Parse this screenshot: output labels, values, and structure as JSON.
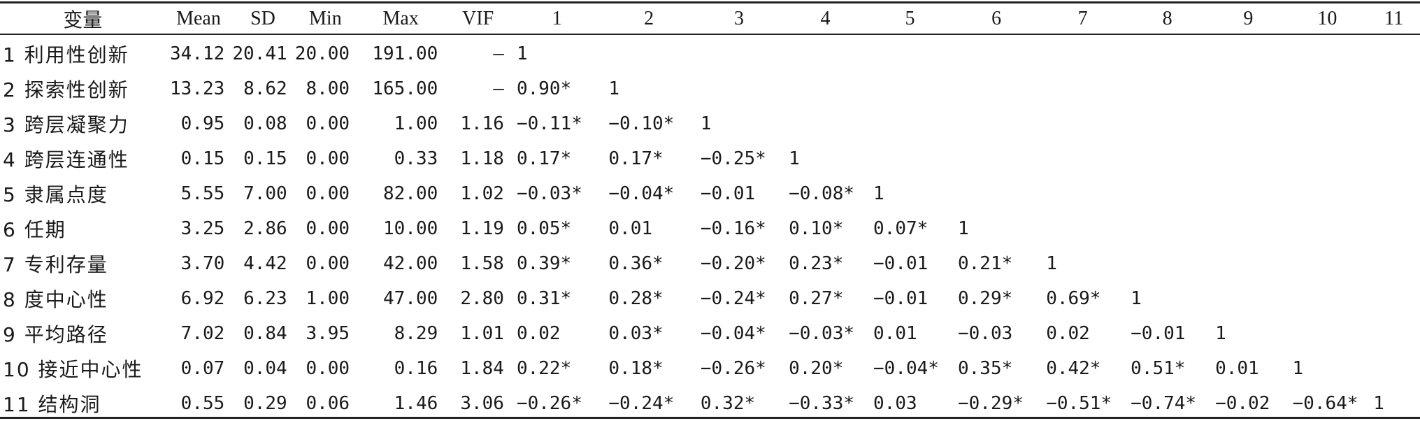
{
  "table": {
    "headers": [
      "变量",
      "Mean",
      "SD",
      "Min",
      "Max",
      "VIF",
      "1",
      "2",
      "3",
      "4",
      "5",
      "6",
      "7",
      "8",
      "9",
      "10",
      "11"
    ],
    "rows": [
      {
        "name": "1 利用性创新",
        "stats": [
          "34.12",
          "20.41",
          "20.00",
          "191.00",
          "—"
        ],
        "corr": [
          "1",
          "",
          "",
          "",
          "",
          "",
          "",
          "",
          "",
          "",
          ""
        ]
      },
      {
        "name": "2 探索性创新",
        "stats": [
          "13.23",
          "8.62",
          "8.00",
          "165.00",
          "—"
        ],
        "corr": [
          "0.90*",
          "1",
          "",
          "",
          "",
          "",
          "",
          "",
          "",
          "",
          ""
        ]
      },
      {
        "name": "3 跨层凝聚力",
        "stats": [
          "0.95",
          "0.08",
          "0.00",
          "1.00",
          "1.16"
        ],
        "corr": [
          "−0.11*",
          "−0.10*",
          "1",
          "",
          "",
          "",
          "",
          "",
          "",
          "",
          ""
        ]
      },
      {
        "name": "4 跨层连通性",
        "stats": [
          "0.15",
          "0.15",
          "0.00",
          "0.33",
          "1.18"
        ],
        "corr": [
          "0.17*",
          "0.17*",
          "−0.25*",
          "1",
          "",
          "",
          "",
          "",
          "",
          "",
          ""
        ]
      },
      {
        "name": "5 隶属点度",
        "stats": [
          "5.55",
          "7.00",
          "0.00",
          "82.00",
          "1.02"
        ],
        "corr": [
          "−0.03*",
          "−0.04*",
          "−0.01",
          "−0.08*",
          "1",
          "",
          "",
          "",
          "",
          "",
          ""
        ]
      },
      {
        "name": "6 任期",
        "stats": [
          "3.25",
          "2.86",
          "0.00",
          "10.00",
          "1.19"
        ],
        "corr": [
          "0.05*",
          "0.01",
          "−0.16*",
          "0.10*",
          "0.07*",
          "1",
          "",
          "",
          "",
          "",
          ""
        ]
      },
      {
        "name": "7 专利存量",
        "stats": [
          "3.70",
          "4.42",
          "0.00",
          "42.00",
          "1.58"
        ],
        "corr": [
          "0.39*",
          "0.36*",
          "−0.20*",
          "0.23*",
          "−0.01",
          "0.21*",
          "1",
          "",
          "",
          "",
          ""
        ]
      },
      {
        "name": "8 度中心性",
        "stats": [
          "6.92",
          "6.23",
          "1.00",
          "47.00",
          "2.80"
        ],
        "corr": [
          "0.31*",
          "0.28*",
          "−0.24*",
          "0.27*",
          "−0.01",
          "0.29*",
          "0.69*",
          "1",
          "",
          "",
          ""
        ]
      },
      {
        "name": "9 平均路径",
        "stats": [
          "7.02",
          "0.84",
          "3.95",
          "8.29",
          "1.01"
        ],
        "corr": [
          "0.02",
          "0.03*",
          "−0.04*",
          "−0.03*",
          "0.01",
          "−0.03",
          "0.02",
          "−0.01",
          "1",
          "",
          ""
        ]
      },
      {
        "name": "10 接近中心性",
        "stats": [
          "0.07",
          "0.04",
          "0.00",
          "0.16",
          "1.84"
        ],
        "corr": [
          "0.22*",
          "0.18*",
          "−0.26*",
          "0.20*",
          "−0.04*",
          "0.35*",
          "0.42*",
          "0.51*",
          "0.01",
          "1",
          ""
        ]
      },
      {
        "name": "11 结构洞",
        "stats": [
          "0.55",
          "0.29",
          "0.06",
          "1.46",
          "3.06"
        ],
        "corr": [
          "−0.26*",
          "−0.24*",
          "0.32*",
          "−0.33*",
          "0.03",
          "−0.29*",
          "−0.51*",
          "−0.74*",
          "−0.02",
          "−0.64*",
          "1"
        ]
      }
    ]
  }
}
